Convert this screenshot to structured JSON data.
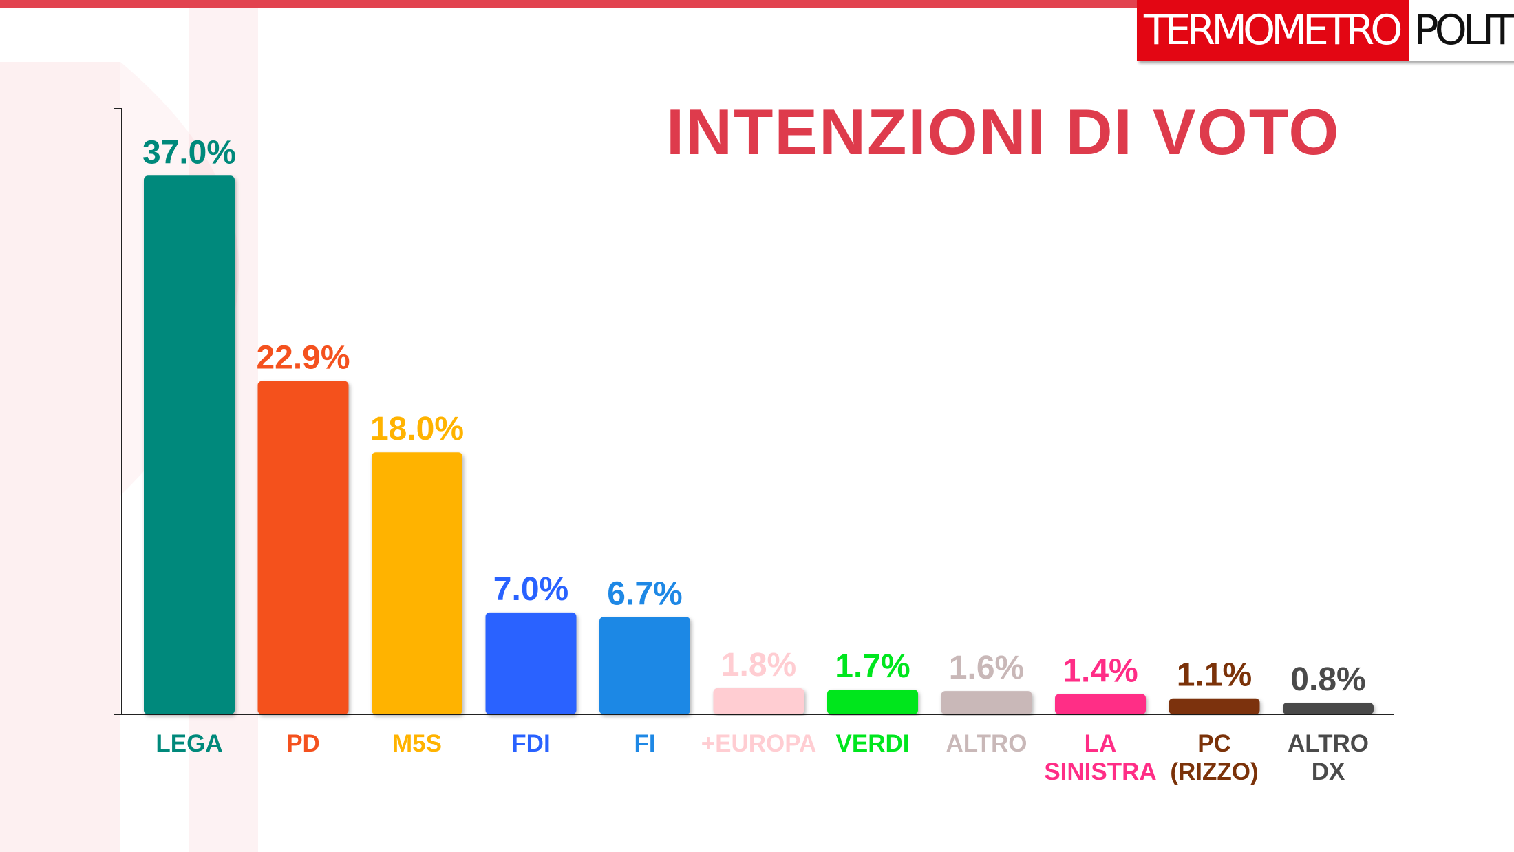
{
  "brand": {
    "logo_left": "TERMOMETRO",
    "logo_right": "POLITICO"
  },
  "colors": {
    "accent": "#e2434f",
    "title": "#de3b4c"
  },
  "chart_data": {
    "type": "bar",
    "title": "INTENZIONI DI VOTO",
    "xlabel": "",
    "ylabel": "",
    "ylim": [
      0,
      41.6
    ],
    "grid": false,
    "categories": [
      "LEGA",
      "PD",
      "M5S",
      "FDI",
      "FI",
      "+EUROPA",
      "VERDI",
      "ALTRO",
      "LA\nSINISTRA",
      "PC\n(RIZZO)",
      "ALTRO\nDX"
    ],
    "values": [
      37.0,
      22.9,
      18.0,
      7.0,
      6.7,
      1.8,
      1.7,
      1.6,
      1.4,
      1.1,
      0.8
    ],
    "value_labels": [
      "37.0%",
      "22.9%",
      "18.0%",
      "7.0%",
      "6.7%",
      "1.8%",
      "1.7%",
      "1.6%",
      "1.4%",
      "1.1%",
      "0.8%"
    ],
    "bar_colors": [
      "#00897b",
      "#f4511e",
      "#ffb300",
      "#2962ff",
      "#1e88e5",
      "#ffcdd2",
      "#00e61e",
      "#c9b8b8",
      "#ff2d86",
      "#7b3209",
      "#4a4a4a"
    ]
  }
}
